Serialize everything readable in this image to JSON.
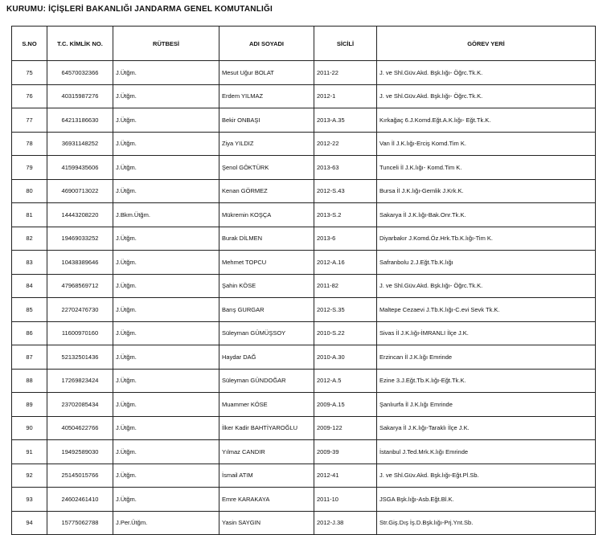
{
  "header": {
    "title": "KURUMU: İÇİŞLERİ BAKANLIĞI JANDARMA GENEL KOMUTANLIĞI"
  },
  "table": {
    "columns": [
      "S.NO",
      "T.C. KİMLİK NO.",
      "RÜTBESİ",
      "ADI SOYADI",
      "SİCİLİ",
      "GÖREV YERİ"
    ],
    "rows": [
      [
        "75",
        "64570032366",
        "J.Ütğm.",
        "Mesut Uğur BOLAT",
        "2011-22",
        "J. ve Shl.Güv.Akd. Bşk.lığı- Öğrc.Tk.K."
      ],
      [
        "76",
        "40315987276",
        "J.Ütğm.",
        "Erdem YILMAZ",
        "2012-1",
        "J. ve Shl.Güv.Akd. Bşk.lığı- Öğrc.Tk.K."
      ],
      [
        "77",
        "64213186630",
        "J.Ütğm.",
        "Bekir ONBAŞI",
        "2013-A.35",
        "Kırkağaç 6.J.Komd.Eğt.A.K.lığı- Eğt.Tk.K."
      ],
      [
        "78",
        "36931148252",
        "J.Ütğm.",
        "Ziya YILDIZ",
        "2012-22",
        "Van İl J.K.lığı-Erciş Komd.Tim K."
      ],
      [
        "79",
        "41599435606",
        "J.Ütğm.",
        "Şenol GÖKTÜRK",
        "2013-63",
        "Tunceli İl J.K.lığı- Komd.Tim K."
      ],
      [
        "80",
        "46900713022",
        "J.Ütğm.",
        "Kenan GÖRMEZ",
        "2012-S.43",
        "Bursa İl J.K.lığı-Gemlik J.Krk.K."
      ],
      [
        "81",
        "14443208220",
        "J.Bkm.Ütğm.",
        "Mükremin KOŞÇA",
        "2013-S.2",
        "Sakarya İl J.K.lığı-Bak.Onr.Tk.K."
      ],
      [
        "82",
        "19469033252",
        "J.Ütğm.",
        "Burak DİLMEN",
        "2013-6",
        "Diyarbakır J.Komd.Öz.Hrk.Tb.K.lığı-Tim K."
      ],
      [
        "83",
        "10438389646",
        "J.Ütğm.",
        "Mehmet TOPCU",
        "2012-A.16",
        "Safranbolu 2.J.Eğt.Tb.K.lığı"
      ],
      [
        "84",
        "47968569712",
        "J.Ütğm.",
        "Şahin KÖSE",
        "2011-82",
        "J. ve Shl.Güv.Akd. Bşk.lığı- Öğrc.Tk.K."
      ],
      [
        "85",
        "22702476730",
        "J.Ütğm.",
        "Barış GURGAR",
        "2012-S.35",
        "Maltepe Cezaevi J.Tb.K.lığı-C.evi Sevk Tk.K."
      ],
      [
        "86",
        "11600970160",
        "J.Ütğm.",
        "Süleyman GÜMÜŞSOY",
        "2010-S.22",
        "Sivas İl J.K.lığı-İMRANLI İlçe J.K."
      ],
      [
        "87",
        "52132501436",
        "J.Ütğm.",
        "Haydar DAĞ",
        "2010-A.30",
        "Erzincan İl J.K.lığı Emrinde"
      ],
      [
        "88",
        "17269823424",
        "J.Ütğm.",
        "Süleyman GÜNDOĞAR",
        "2012-A.5",
        "Ezine 3.J.Eğt.Tb.K.lığı-Eğt.Tk.K."
      ],
      [
        "89",
        "23702085434",
        "J.Ütğm.",
        "Muammer KÖSE",
        "2009-A.15",
        "Şanlıurfa İl J.K.lığı Emrinde"
      ],
      [
        "90",
        "40504622766",
        "J.Ütğm.",
        "İlker Kadir BAHTİYAROĞLU",
        "2009-122",
        "Sakarya İl J.K.lığı-Taraklı İlçe J.K."
      ],
      [
        "91",
        "19492589030",
        "J.Ütğm.",
        "Yılmaz CANDIR",
        "2009-39",
        "İstanbul J.Ted.Mrk.K.lığı Emrinde"
      ],
      [
        "92",
        "25145015766",
        "J.Ütğm.",
        "İsmail ATIM",
        "2012-41",
        "J. ve Shl.Güv.Akd. Bşk.lığı-Eğt.Pl.Sb."
      ],
      [
        "93",
        "24602461410",
        "J.Ütğm.",
        "Emre KARAKAYA",
        "2011-10",
        "JSGA Bşk.lığı-Asb.Eğt.Bl.K."
      ],
      [
        "94",
        "15775062788",
        "J.Per.Ütğm.",
        "Yasin SAYGIN",
        "2012-J.38",
        "Str.Giş.Dış İş.D.Bşk.lığı-Prj.Ynt.Sb."
      ]
    ]
  }
}
